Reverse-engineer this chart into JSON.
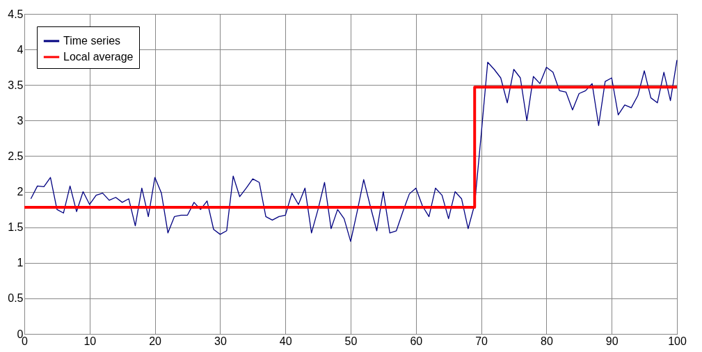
{
  "chart_data": {
    "type": "line",
    "xlim": [
      0,
      100
    ],
    "ylim": [
      0,
      4.5
    ],
    "xticks": [
      0,
      10,
      20,
      30,
      40,
      50,
      60,
      70,
      80,
      90,
      100
    ],
    "yticks": [
      0,
      0.5,
      1,
      1.5,
      2,
      2.5,
      3,
      3.5,
      4,
      4.5
    ],
    "grid": true,
    "legend": "top left",
    "marker": "none",
    "line_style": "solid",
    "series": [
      {
        "name": "Time series",
        "color": "#000080",
        "x": [
          1,
          2,
          3,
          4,
          5,
          6,
          7,
          8,
          9,
          10,
          11,
          12,
          13,
          14,
          15,
          16,
          17,
          18,
          19,
          20,
          21,
          22,
          23,
          24,
          25,
          26,
          27,
          28,
          29,
          30,
          31,
          32,
          33,
          34,
          35,
          36,
          37,
          38,
          39,
          40,
          41,
          42,
          43,
          44,
          45,
          46,
          47,
          48,
          49,
          50,
          51,
          52,
          53,
          54,
          55,
          56,
          57,
          58,
          59,
          60,
          61,
          62,
          63,
          64,
          65,
          66,
          67,
          68,
          69,
          70,
          71,
          72,
          73,
          74,
          75,
          76,
          77,
          78,
          79,
          80,
          81,
          82,
          83,
          84,
          85,
          86,
          87,
          88,
          89,
          90,
          91,
          92,
          93,
          94,
          95,
          96,
          97,
          98,
          99,
          100
        ],
        "values": [
          1.9,
          2.08,
          2.07,
          2.2,
          1.75,
          1.7,
          2.08,
          1.72,
          2.0,
          1.82,
          1.95,
          1.98,
          1.88,
          1.92,
          1.85,
          1.9,
          1.52,
          2.05,
          1.65,
          2.2,
          1.98,
          1.42,
          1.65,
          1.67,
          1.67,
          1.85,
          1.75,
          1.87,
          1.47,
          1.4,
          1.45,
          2.22,
          1.93,
          2.05,
          2.18,
          2.13,
          1.65,
          1.6,
          1.65,
          1.67,
          1.98,
          1.82,
          2.05,
          1.42,
          1.75,
          2.13,
          1.48,
          1.75,
          1.62,
          1.3,
          1.72,
          2.17,
          1.8,
          1.45,
          2.0,
          1.42,
          1.45,
          1.72,
          1.97,
          2.05,
          1.8,
          1.65,
          2.05,
          1.95,
          1.62,
          2.0,
          1.9,
          1.48,
          1.82,
          2.8,
          3.82,
          3.72,
          3.6,
          3.25,
          3.72,
          3.6,
          3.0,
          3.62,
          3.52,
          3.75,
          3.68,
          3.42,
          3.4,
          3.15,
          3.38,
          3.42,
          3.52,
          2.93,
          3.55,
          3.6,
          3.08,
          3.22,
          3.18,
          3.35,
          3.7,
          3.32,
          3.25,
          3.68,
          3.28,
          3.85
        ]
      },
      {
        "name": "Local average",
        "color": "#ff0000",
        "type": "step",
        "x": [
          0,
          69,
          100
        ],
        "values": [
          1.78,
          3.47,
          3.47
        ]
      }
    ]
  }
}
